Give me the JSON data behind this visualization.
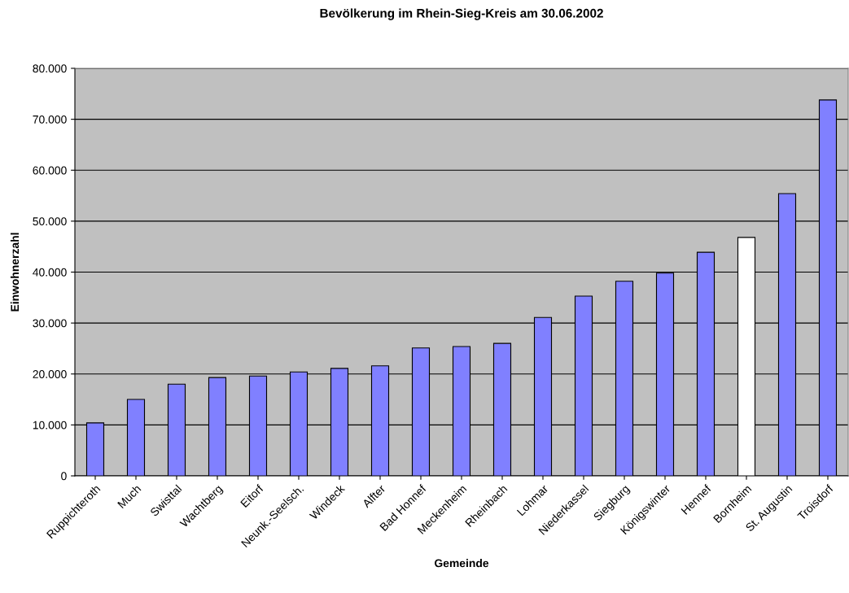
{
  "chart_data": {
    "type": "bar",
    "title": "Bevölkerung im Rhein-Sieg-Kreis am 30.06.2002",
    "xlabel": "Gemeinde",
    "ylabel": "Einwohnerzahl",
    "categories": [
      "Ruppichteroth",
      "Much",
      "Swisttal",
      "Wachtberg",
      "Eitorf",
      "Neunk.-Seelsch.",
      "Windeck",
      "Alfter",
      "Bad Honnef",
      "Meckenheim",
      "Rheinbach",
      "Lohmar",
      "Niederkassel",
      "Siegburg",
      "Königswinter",
      "Hennef",
      "Bornheim",
      "St. Augustin",
      "Troisdorf"
    ],
    "values": [
      10400,
      15000,
      18000,
      19300,
      19600,
      20400,
      21100,
      21600,
      25100,
      25400,
      26000,
      31100,
      35300,
      38200,
      39800,
      43900,
      46800,
      55400,
      73800
    ],
    "colors": [
      "#8080ff",
      "#8080ff",
      "#8080ff",
      "#8080ff",
      "#8080ff",
      "#8080ff",
      "#8080ff",
      "#8080ff",
      "#8080ff",
      "#8080ff",
      "#8080ff",
      "#8080ff",
      "#8080ff",
      "#8080ff",
      "#8080ff",
      "#8080ff",
      "#ffffff",
      "#8080ff",
      "#8080ff"
    ],
    "ylim": [
      0,
      80000
    ],
    "yticks": [
      0,
      {
        "value": 10000,
        "label": "10.000"
      },
      {
        "value": 20000,
        "label": "20.000"
      },
      {
        "value": 30000,
        "label": "30.000"
      },
      {
        "value": 40000,
        "label": "40.000"
      },
      {
        "value": 50000,
        "label": "50.000"
      },
      {
        "value": 60000,
        "label": "60.000"
      },
      {
        "value": 70000,
        "label": "70.000"
      },
      {
        "value": 80000,
        "label": "80.000"
      }
    ],
    "grid": "y"
  }
}
